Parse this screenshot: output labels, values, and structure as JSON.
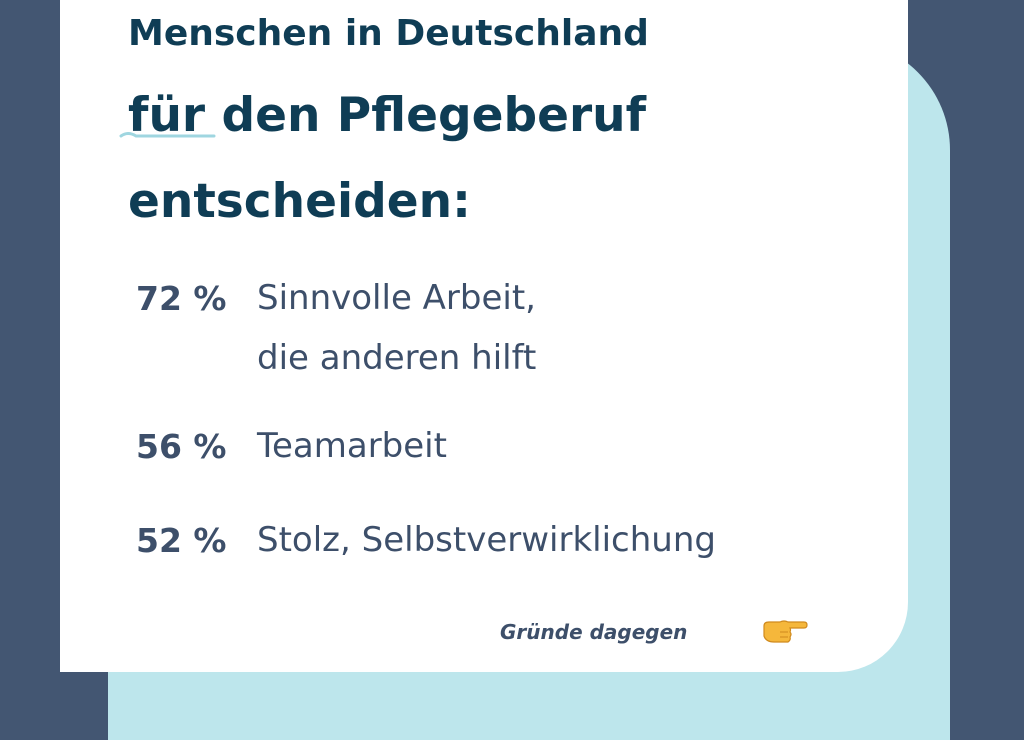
{
  "heading": {
    "line1": "Menschen in Deutschland",
    "line2": "für den Pflegeberuf",
    "line3": "entscheiden:"
  },
  "reasons": [
    {
      "value": "72 %",
      "label_lines": [
        "Sinnvolle Arbeit,",
        "die anderen hilft"
      ]
    },
    {
      "value": "56 %",
      "label_lines": [
        "Teamarbeit"
      ]
    },
    {
      "value": "52 %",
      "label_lines": [
        "Stolz, Selbstverwirklichung"
      ]
    }
  ],
  "footer": {
    "link_label": "Gründe dagegen",
    "link_icon": "pointing-hand-icon"
  },
  "colors": {
    "background": "#435672",
    "accent": "#bde6ec",
    "card": "#ffffff",
    "heading": "#0f3d55",
    "body_text": "#3d4f6a",
    "hand": "#f5b73b"
  }
}
